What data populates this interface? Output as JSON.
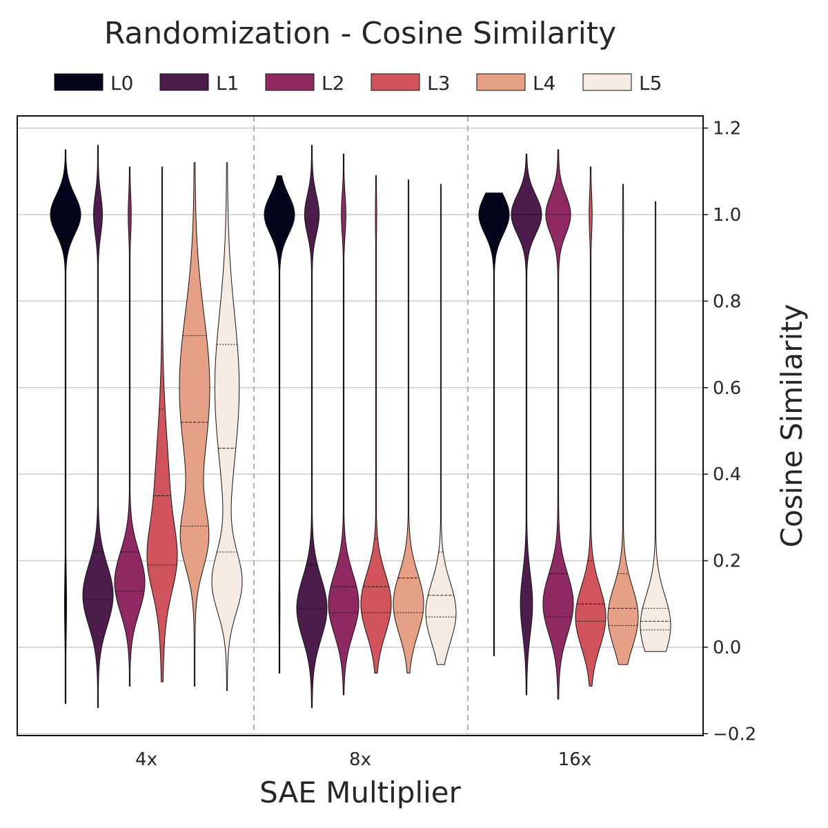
{
  "chart_data": {
    "type": "violin",
    "title": "Randomization - Cosine Similarity",
    "xlabel": "SAE Multiplier",
    "ylabel": "Cosine Similarity",
    "ylim": [
      -0.2,
      1.23
    ],
    "y_ticks": [
      "−0.2",
      "0.0",
      "0.2",
      "0.4",
      "0.6",
      "0.8",
      "1.0",
      "1.2"
    ],
    "y_tick_values": [
      -0.2,
      0.0,
      0.2,
      0.4,
      0.6,
      0.8,
      1.0,
      1.2
    ],
    "grid": true,
    "legend_position": "top",
    "categories": [
      "4x",
      "8x",
      "16x"
    ],
    "series": [
      {
        "name": "L0",
        "color": "#03051a"
      },
      {
        "name": "L1",
        "color": "#4c1d4b"
      },
      {
        "name": "L2",
        "color": "#8e2961"
      },
      {
        "name": "L3",
        "color": "#d1535b"
      },
      {
        "name": "L4",
        "color": "#e6a086"
      },
      {
        "name": "L5",
        "color": "#f6ebe2"
      }
    ],
    "violins": [
      {
        "category": "4x",
        "layer": "L0",
        "min": -0.13,
        "max": 1.15,
        "median": 0.97,
        "q1": 0.95,
        "q3": 1.0,
        "upper_mode": 1.0,
        "upper_mode_weight": 0.95,
        "lower_mode": 0.1,
        "lower_mode_weight": 0.05
      },
      {
        "category": "4x",
        "layer": "L1",
        "min": -0.14,
        "max": 1.16,
        "median": 0.22,
        "q1": 0.11,
        "q3": 0.22,
        "upper_mode": 1.0,
        "upper_mode_weight": 0.22,
        "lower_mode": 0.12,
        "lower_mode_weight": 0.78
      },
      {
        "category": "4x",
        "layer": "L2",
        "min": -0.09,
        "max": 1.11,
        "median": 0.22,
        "q1": 0.13,
        "q3": 0.37,
        "upper_mode": 1.0,
        "upper_mode_weight": 0.08,
        "lower_mode": 0.15,
        "lower_mode_weight": 0.92
      },
      {
        "category": "4x",
        "layer": "L3",
        "min": -0.08,
        "max": 1.11,
        "median": 0.35,
        "q1": 0.19,
        "q3": 0.55,
        "upper_mode": 0.3,
        "upper_mode_weight": 0.5,
        "lower_mode": 0.2,
        "lower_mode_weight": 0.5
      },
      {
        "category": "4x",
        "layer": "L4",
        "min": -0.09,
        "max": 1.12,
        "median": 0.52,
        "q1": 0.28,
        "q3": 0.72,
        "upper_mode": 0.6,
        "upper_mode_weight": 0.55,
        "lower_mode": 0.25,
        "lower_mode_weight": 0.45
      },
      {
        "category": "4x",
        "layer": "L5",
        "min": -0.1,
        "max": 1.12,
        "median": 0.46,
        "q1": 0.22,
        "q3": 0.7,
        "upper_mode": 0.6,
        "upper_mode_weight": 0.45,
        "lower_mode": 0.15,
        "lower_mode_weight": 0.55
      },
      {
        "category": "8x",
        "layer": "L0",
        "min": -0.06,
        "max": 1.09,
        "median": 0.99,
        "q1": 0.97,
        "q3": 1.0,
        "upper_mode": 1.0,
        "upper_mode_weight": 0.98,
        "lower_mode": 0.1,
        "lower_mode_weight": 0.02
      },
      {
        "category": "8x",
        "layer": "L1",
        "min": -0.14,
        "max": 1.16,
        "median": 0.19,
        "q1": 0.09,
        "q3": 0.19,
        "upper_mode": 1.0,
        "upper_mode_weight": 0.32,
        "lower_mode": 0.09,
        "lower_mode_weight": 0.68
      },
      {
        "category": "8x",
        "layer": "L2",
        "min": -0.11,
        "max": 1.14,
        "median": 0.14,
        "q1": 0.08,
        "q3": 0.33,
        "upper_mode": 1.0,
        "upper_mode_weight": 0.12,
        "lower_mode": 0.1,
        "lower_mode_weight": 0.88
      },
      {
        "category": "8x",
        "layer": "L3",
        "min": -0.06,
        "max": 1.09,
        "median": 0.14,
        "q1": 0.08,
        "q3": 0.25,
        "upper_mode": 1.0,
        "upper_mode_weight": 0.03,
        "lower_mode": 0.1,
        "lower_mode_weight": 0.97
      },
      {
        "category": "8x",
        "layer": "L4",
        "min": -0.06,
        "max": 1.08,
        "median": 0.16,
        "q1": 0.08,
        "q3": 0.3,
        "upper_mode": 1.0,
        "upper_mode_weight": 0.01,
        "lower_mode": 0.1,
        "lower_mode_weight": 0.99
      },
      {
        "category": "8x",
        "layer": "L5",
        "min": -0.04,
        "max": 1.07,
        "median": 0.12,
        "q1": 0.07,
        "q3": 0.22,
        "upper_mode": 1.0,
        "upper_mode_weight": 0.0,
        "lower_mode": 0.08,
        "lower_mode_weight": 1.0
      },
      {
        "category": "16x",
        "layer": "L0",
        "min": -0.02,
        "max": 1.05,
        "median": 1.0,
        "q1": 0.99,
        "q3": 1.01,
        "upper_mode": 1.0,
        "upper_mode_weight": 1.0,
        "lower_mode": 0.1,
        "lower_mode_weight": 0.0
      },
      {
        "category": "16x",
        "layer": "L1",
        "min": -0.11,
        "max": 1.14,
        "median": 1.0,
        "q1": 0.14,
        "q3": 1.0,
        "upper_mode": 1.0,
        "upper_mode_weight": 0.72,
        "lower_mode": 0.1,
        "lower_mode_weight": 0.28
      },
      {
        "category": "16x",
        "layer": "L2",
        "min": -0.12,
        "max": 1.15,
        "median": 0.17,
        "q1": 0.07,
        "q3": 1.0,
        "upper_mode": 1.0,
        "upper_mode_weight": 0.45,
        "lower_mode": 0.1,
        "lower_mode_weight": 0.55
      },
      {
        "category": "16x",
        "layer": "L3",
        "min": -0.09,
        "max": 1.11,
        "median": 0.1,
        "q1": 0.06,
        "q3": 0.2,
        "upper_mode": 1.0,
        "upper_mode_weight": 0.08,
        "lower_mode": 0.07,
        "lower_mode_weight": 0.92
      },
      {
        "category": "16x",
        "layer": "L4",
        "min": -0.04,
        "max": 1.07,
        "median": 0.09,
        "q1": 0.05,
        "q3": 0.17,
        "upper_mode": 1.0,
        "upper_mode_weight": 0.02,
        "lower_mode": 0.07,
        "lower_mode_weight": 0.98
      },
      {
        "category": "16x",
        "layer": "L5",
        "min": -0.01,
        "max": 1.03,
        "median": 0.06,
        "q1": 0.04,
        "q3": 0.09,
        "upper_mode": 1.0,
        "upper_mode_weight": 0.0,
        "lower_mode": 0.05,
        "lower_mode_weight": 1.0
      }
    ]
  }
}
